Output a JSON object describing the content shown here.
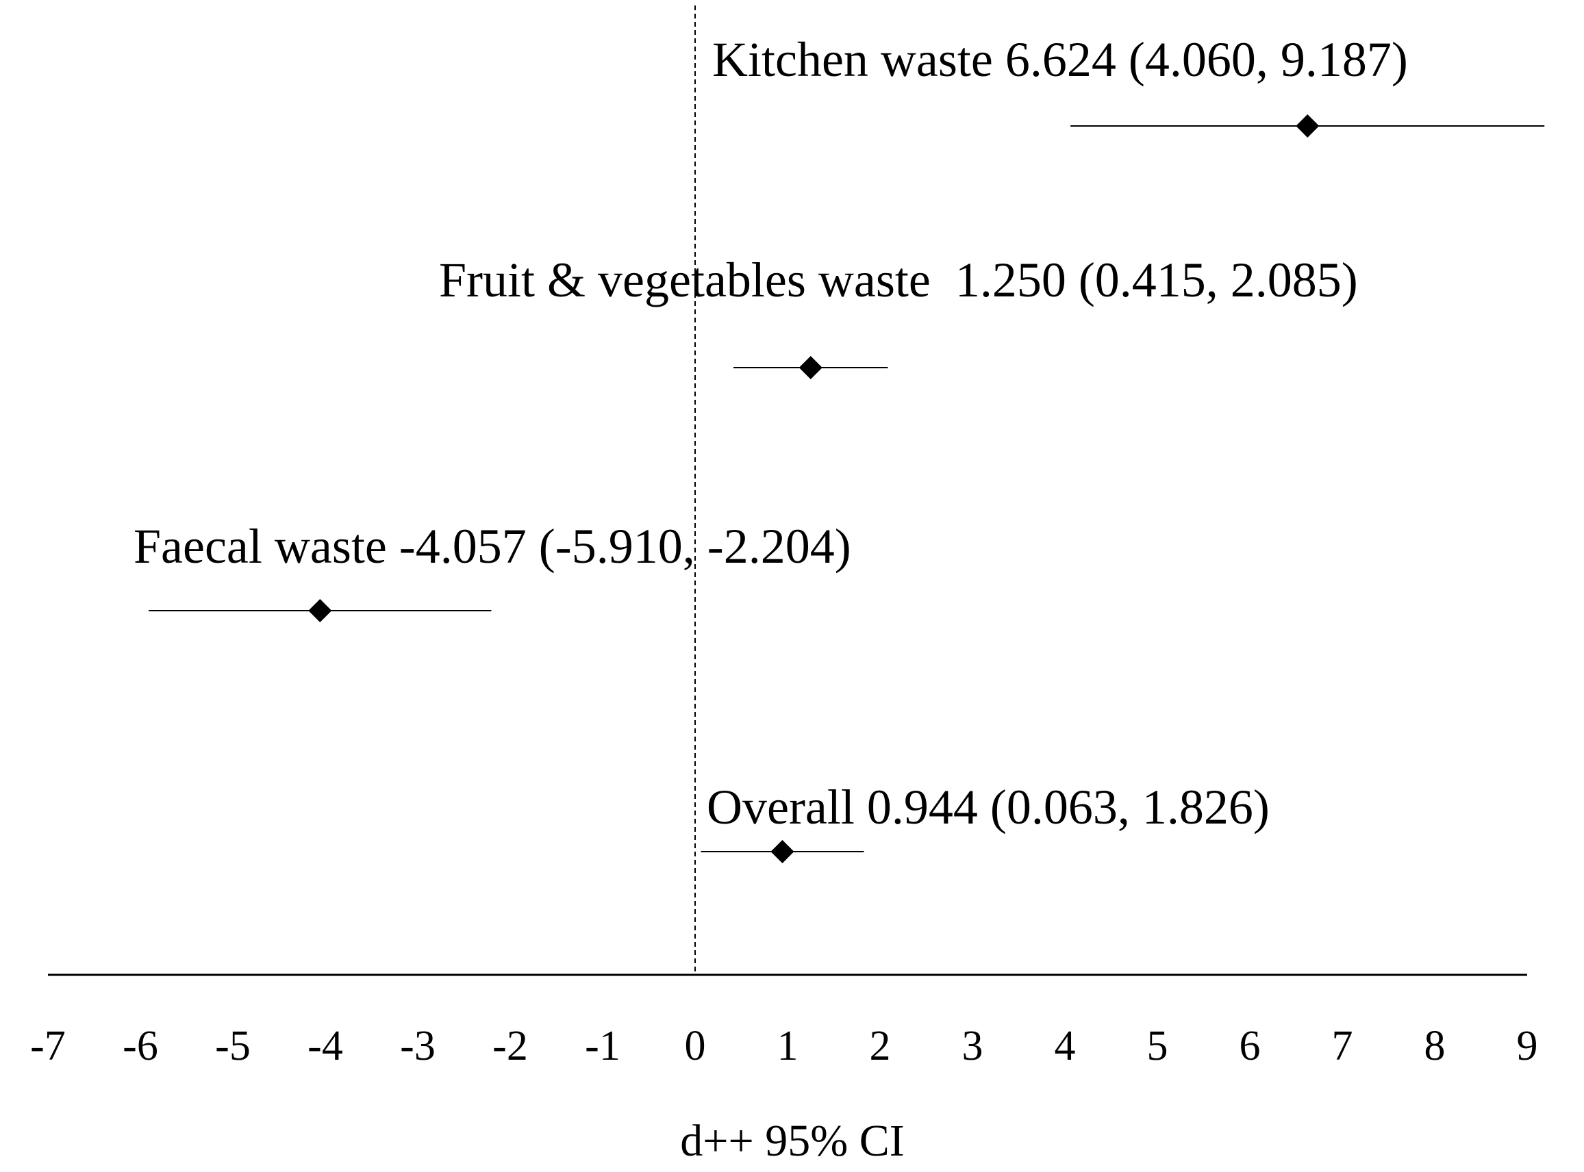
{
  "chart_data": {
    "type": "scatter",
    "subtype": "forest-plot",
    "title": "",
    "xlabel": "d++ 95% CI",
    "ylabel": "",
    "xlim": [
      -7,
      9
    ],
    "xticks": [
      "-7",
      "-6",
      "-5",
      "-4",
      "-3",
      "-2",
      "-1",
      "0",
      "1",
      "2",
      "3",
      "4",
      "5",
      "6",
      "7",
      "8",
      "9"
    ],
    "reference_line": 0,
    "grid": false,
    "legend": "none",
    "marker": "diamond",
    "color": "#000000",
    "rows": [
      {
        "name": "Kitchen waste",
        "estimate": 6.624,
        "ci_low": 4.06,
        "ci_high": 9.187,
        "label": "Kitchen waste 6.624 (4.060, 9.187)"
      },
      {
        "name": "Fruit & vegetables waste",
        "estimate": 1.25,
        "ci_low": 0.415,
        "ci_high": 2.085,
        "label": "Fruit & vegetables waste  1.250 (0.415, 2.085)"
      },
      {
        "name": "Faecal waste",
        "estimate": -4.057,
        "ci_low": -5.91,
        "ci_high": -2.204,
        "label": "Faecal waste -4.057 (-5.910, -2.204)"
      },
      {
        "name": "Overall",
        "estimate": 0.944,
        "ci_low": 0.063,
        "ci_high": 1.826,
        "label": "Overall 0.944 (0.063, 1.826)"
      }
    ]
  }
}
